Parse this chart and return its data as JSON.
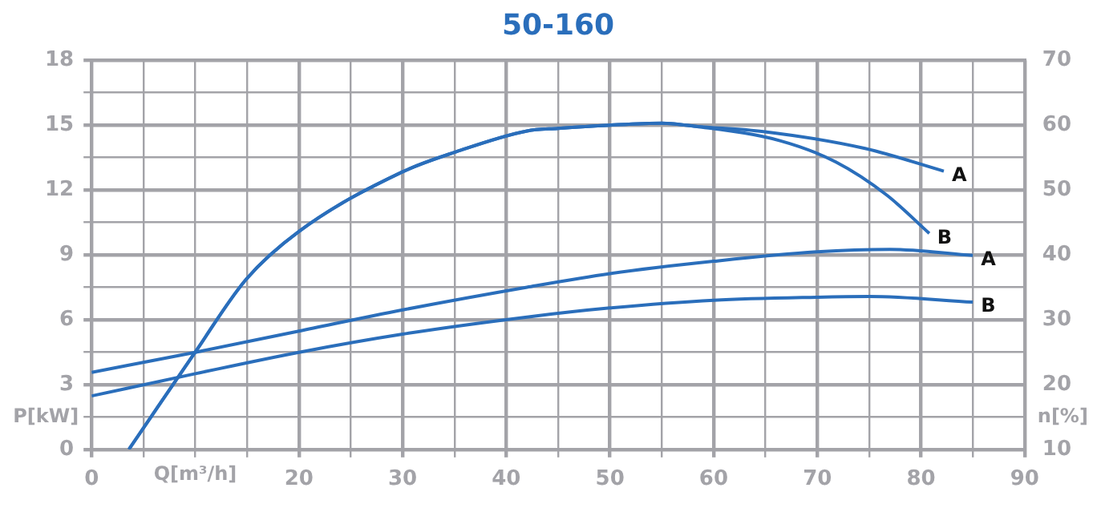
{
  "chart_data": {
    "type": "line",
    "title": "50-160",
    "xlabel": "Q[m³/h]",
    "ylabel": "P[kW]",
    "y2label": "n[%]",
    "xlim": [
      0,
      90
    ],
    "xticks": [
      0,
      {
        "value": 5,
        "label": null
      },
      {
        "value": 10,
        "label": null
      },
      {
        "value": 15,
        "label": null
      },
      20,
      {
        "value": 25,
        "label": null
      },
      30,
      {
        "value": 35,
        "label": null
      },
      40,
      {
        "value": 45,
        "label": null
      },
      50,
      {
        "value": 55,
        "label": null
      },
      60,
      {
        "value": 65,
        "label": null
      },
      70,
      {
        "value": 75,
        "label": null
      },
      80,
      {
        "value": 85,
        "label": null
      },
      90
    ],
    "ylim": [
      0,
      18
    ],
    "yticks": [
      0,
      {
        "value": 1.5,
        "label": null
      },
      3,
      {
        "value": 4.5,
        "label": null
      },
      6,
      {
        "value": 7.5,
        "label": null
      },
      9,
      {
        "value": 10.5,
        "label": null
      },
      12,
      {
        "value": 13.5,
        "label": null
      },
      15,
      {
        "value": 16.5,
        "label": null
      },
      18
    ],
    "y2lim": [
      10,
      70
    ],
    "y2ticks": [
      10,
      20,
      30,
      40,
      50,
      60,
      70
    ],
    "grid": true,
    "legend": false,
    "marker": "none",
    "line_style": "solid",
    "series": [
      {
        "name": "A",
        "axis": "y2",
        "color": "#2a6ebb",
        "x": [
          3.6,
          10,
          14.9,
          20,
          30,
          35,
          42,
          45,
          50,
          55,
          58.3,
          64.8,
          74.6,
          82.2
        ],
        "values": [
          10,
          25,
          36.2,
          43.6,
          52.8,
          55.8,
          59.1,
          59.5,
          60,
          60.3,
          59.8,
          59,
          56.4,
          52.9
        ]
      },
      {
        "name": "B",
        "axis": "y2",
        "color": "#2a6ebb",
        "x": [
          3.6,
          10,
          14.9,
          20,
          30,
          35,
          42,
          45,
          50,
          55,
          58.3,
          66.4,
          71.8,
          76.7,
          80.8
        ],
        "values": [
          10,
          25,
          36.2,
          43.6,
          52.8,
          55.8,
          59.1,
          59.5,
          60,
          60.3,
          59.8,
          57.6,
          54.3,
          49.2,
          43.3
        ]
      },
      {
        "name": "A",
        "color": "#2a6ebb",
        "x": [
          0,
          10,
          20,
          30,
          42,
          50,
          60,
          70,
          77,
          85
        ],
        "values": [
          3.56,
          4.49,
          5.47,
          6.45,
          7.5,
          8.13,
          8.7,
          9.14,
          9.25,
          8.97
        ]
      },
      {
        "name": "B",
        "color": "#2a6ebb",
        "x": [
          0,
          10,
          20,
          30,
          42,
          50,
          60,
          70,
          75,
          85
        ],
        "values": [
          2.47,
          3.5,
          4.49,
          5.33,
          6.12,
          6.54,
          6.9,
          7.04,
          7.07,
          6.81
        ]
      }
    ]
  }
}
